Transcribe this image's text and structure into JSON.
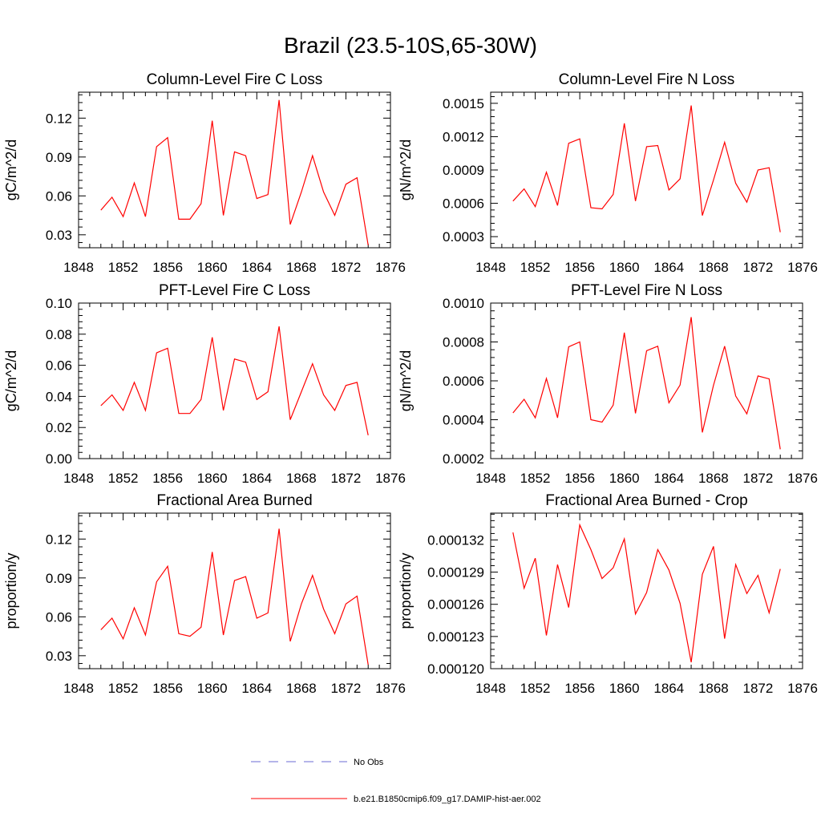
{
  "figure": {
    "title": "Brazil (23.5-10S,65-30W)"
  },
  "legend": {
    "entries": [
      {
        "label": "No Obs",
        "color": "#6b6bd6",
        "dash": true
      },
      {
        "label": "b.e21.B1850cmip6.f09_g17.DAMIP-hist-aer.002",
        "color": "#ff0000",
        "dash": false
      }
    ]
  },
  "chart_data": [
    {
      "type": "line",
      "title": "Column-Level Fire C Loss",
      "ylabel": "gC/m^2/d",
      "xlim": [
        1848,
        1876
      ],
      "xticks": [
        1848,
        1852,
        1856,
        1860,
        1864,
        1868,
        1872,
        1876
      ],
      "ylim": [
        0.02,
        0.14
      ],
      "yticks": [
        0.03,
        0.06,
        0.09,
        0.12
      ],
      "ytick_labels": [
        "0.03",
        "0.06",
        "0.09",
        "0.12"
      ],
      "x": [
        1850,
        1851,
        1852,
        1853,
        1854,
        1855,
        1856,
        1857,
        1858,
        1859,
        1860,
        1861,
        1862,
        1863,
        1864,
        1865,
        1866,
        1867,
        1868,
        1869,
        1870,
        1871,
        1872,
        1873,
        1874
      ],
      "series": [
        {
          "name": "b.e21.B1850cmip6.f09_g17.DAMIP-hist-aer.002",
          "color": "#ff0000",
          "values": [
            0.049,
            0.059,
            0.044,
            0.07,
            0.044,
            0.098,
            0.105,
            0.042,
            0.042,
            0.054,
            0.118,
            0.045,
            0.094,
            0.091,
            0.058,
            0.061,
            0.134,
            0.038,
            0.063,
            0.091,
            0.063,
            0.045,
            0.069,
            0.074,
            0.022
          ]
        }
      ]
    },
    {
      "type": "line",
      "title": "Column-Level Fire N Loss",
      "ylabel": "gN/m^2/d",
      "xlim": [
        1848,
        1876
      ],
      "xticks": [
        1848,
        1852,
        1856,
        1860,
        1864,
        1868,
        1872,
        1876
      ],
      "ylim": [
        0.0002,
        0.0016
      ],
      "yticks": [
        0.0003,
        0.0006,
        0.0009,
        0.0012,
        0.0015
      ],
      "ytick_labels": [
        "0.0003",
        "0.0006",
        "0.0009",
        "0.0012",
        "0.0015"
      ],
      "x": [
        1850,
        1851,
        1852,
        1853,
        1854,
        1855,
        1856,
        1857,
        1858,
        1859,
        1860,
        1861,
        1862,
        1863,
        1864,
        1865,
        1866,
        1867,
        1868,
        1869,
        1870,
        1871,
        1872,
        1873,
        1874
      ],
      "series": [
        {
          "name": "b.e21.B1850cmip6.f09_g17.DAMIP-hist-aer.002",
          "color": "#ff0000",
          "values": [
            0.00062,
            0.00073,
            0.00057,
            0.00088,
            0.00058,
            0.00114,
            0.00118,
            0.00056,
            0.00055,
            0.00068,
            0.00132,
            0.00062,
            0.00111,
            0.00112,
            0.00072,
            0.00082,
            0.00148,
            0.00049,
            0.00081,
            0.00115,
            0.00078,
            0.00061,
            0.0009,
            0.00092,
            0.00034
          ]
        }
      ]
    },
    {
      "type": "line",
      "title": "PFT-Level Fire C Loss",
      "ylabel": "gC/m^2/d",
      "xlim": [
        1848,
        1876
      ],
      "xticks": [
        1848,
        1852,
        1856,
        1860,
        1864,
        1868,
        1872,
        1876
      ],
      "ylim": [
        0.0,
        0.1
      ],
      "yticks": [
        0.0,
        0.02,
        0.04,
        0.06,
        0.08,
        0.1
      ],
      "ytick_labels": [
        "0.00",
        "0.02",
        "0.04",
        "0.06",
        "0.08",
        "0.10"
      ],
      "x": [
        1850,
        1851,
        1852,
        1853,
        1854,
        1855,
        1856,
        1857,
        1858,
        1859,
        1860,
        1861,
        1862,
        1863,
        1864,
        1865,
        1866,
        1867,
        1868,
        1869,
        1870,
        1871,
        1872,
        1873,
        1874
      ],
      "series": [
        {
          "name": "b.e21.B1850cmip6.f09_g17.DAMIP-hist-aer.002",
          "color": "#ff0000",
          "values": [
            0.034,
            0.041,
            0.031,
            0.049,
            0.031,
            0.068,
            0.071,
            0.029,
            0.029,
            0.038,
            0.078,
            0.031,
            0.064,
            0.062,
            0.038,
            0.043,
            0.085,
            0.025,
            0.043,
            0.061,
            0.041,
            0.031,
            0.047,
            0.049,
            0.015
          ]
        }
      ]
    },
    {
      "type": "line",
      "title": "PFT-Level Fire N Loss",
      "ylabel": "gN/m^2/d",
      "xlim": [
        1848,
        1876
      ],
      "xticks": [
        1848,
        1852,
        1856,
        1860,
        1864,
        1868,
        1872,
        1876
      ],
      "ylim": [
        0.0002,
        0.001
      ],
      "yticks": [
        0.0002,
        0.0004,
        0.0006,
        0.0008,
        0.001
      ],
      "ytick_labels": [
        "0.0002",
        "0.0004",
        "0.0006",
        "0.0008",
        "0.0010"
      ],
      "x": [
        1850,
        1851,
        1852,
        1853,
        1854,
        1855,
        1856,
        1857,
        1858,
        1859,
        1860,
        1861,
        1862,
        1863,
        1864,
        1865,
        1866,
        1867,
        1868,
        1869,
        1870,
        1871,
        1872,
        1873,
        1874
      ],
      "series": [
        {
          "name": "b.e21.B1850cmip6.f09_g17.DAMIP-hist-aer.002",
          "color": "#ff0000",
          "values": [
            0.000435,
            0.000505,
            0.00041,
            0.000612,
            0.00041,
            0.000775,
            0.0008,
            0.0004,
            0.000388,
            0.000475,
            0.000848,
            0.000433,
            0.000755,
            0.000778,
            0.000487,
            0.000578,
            0.000928,
            0.000335,
            0.000577,
            0.000778,
            0.000522,
            0.00043,
            0.000625,
            0.00061,
            0.000248
          ]
        }
      ]
    },
    {
      "type": "line",
      "title": "Fractional Area Burned",
      "ylabel": "proportion/y",
      "xlim": [
        1848,
        1876
      ],
      "xticks": [
        1848,
        1852,
        1856,
        1860,
        1864,
        1868,
        1872,
        1876
      ],
      "ylim": [
        0.02,
        0.14
      ],
      "yticks": [
        0.03,
        0.06,
        0.09,
        0.12
      ],
      "ytick_labels": [
        "0.03",
        "0.06",
        "0.09",
        "0.12"
      ],
      "x": [
        1850,
        1851,
        1852,
        1853,
        1854,
        1855,
        1856,
        1857,
        1858,
        1859,
        1860,
        1861,
        1862,
        1863,
        1864,
        1865,
        1866,
        1867,
        1868,
        1869,
        1870,
        1871,
        1872,
        1873,
        1874
      ],
      "series": [
        {
          "name": "b.e21.B1850cmip6.f09_g17.DAMIP-hist-aer.002",
          "color": "#ff0000",
          "values": [
            0.05,
            0.059,
            0.043,
            0.067,
            0.046,
            0.087,
            0.099,
            0.047,
            0.045,
            0.052,
            0.11,
            0.046,
            0.088,
            0.091,
            0.059,
            0.063,
            0.128,
            0.041,
            0.07,
            0.092,
            0.066,
            0.047,
            0.07,
            0.076,
            0.023
          ]
        }
      ]
    },
    {
      "type": "line",
      "title": "Fractional Area Burned - Crop",
      "ylabel": "proportion/y",
      "xlim": [
        1848,
        1876
      ],
      "xticks": [
        1848,
        1852,
        1856,
        1860,
        1864,
        1868,
        1872,
        1876
      ],
      "ylim": [
        0.00012,
        0.0001345
      ],
      "yticks": [
        0.00012,
        0.000123,
        0.000126,
        0.000129,
        0.000132
      ],
      "ytick_labels": [
        "0.000120",
        "0.000123",
        "0.000126",
        "0.000129",
        "0.000132"
      ],
      "x": [
        1850,
        1851,
        1852,
        1853,
        1854,
        1855,
        1856,
        1857,
        1858,
        1859,
        1860,
        1861,
        1862,
        1863,
        1864,
        1865,
        1866,
        1867,
        1868,
        1869,
        1870,
        1871,
        1872,
        1873,
        1874
      ],
      "series": [
        {
          "name": "b.e21.B1850cmip6.f09_g17.DAMIP-hist-aer.002",
          "color": "#ff0000",
          "values": [
            0.0001327,
            0.0001275,
            0.0001303,
            0.0001231,
            0.0001297,
            0.0001257,
            0.0001334,
            0.0001311,
            0.0001284,
            0.0001294,
            0.0001321,
            0.0001251,
            0.0001271,
            0.0001311,
            0.0001292,
            0.0001261,
            0.0001206,
            0.0001288,
            0.0001314,
            0.0001228,
            0.0001297,
            0.000127,
            0.0001287,
            0.0001252,
            0.0001293
          ]
        }
      ]
    }
  ]
}
